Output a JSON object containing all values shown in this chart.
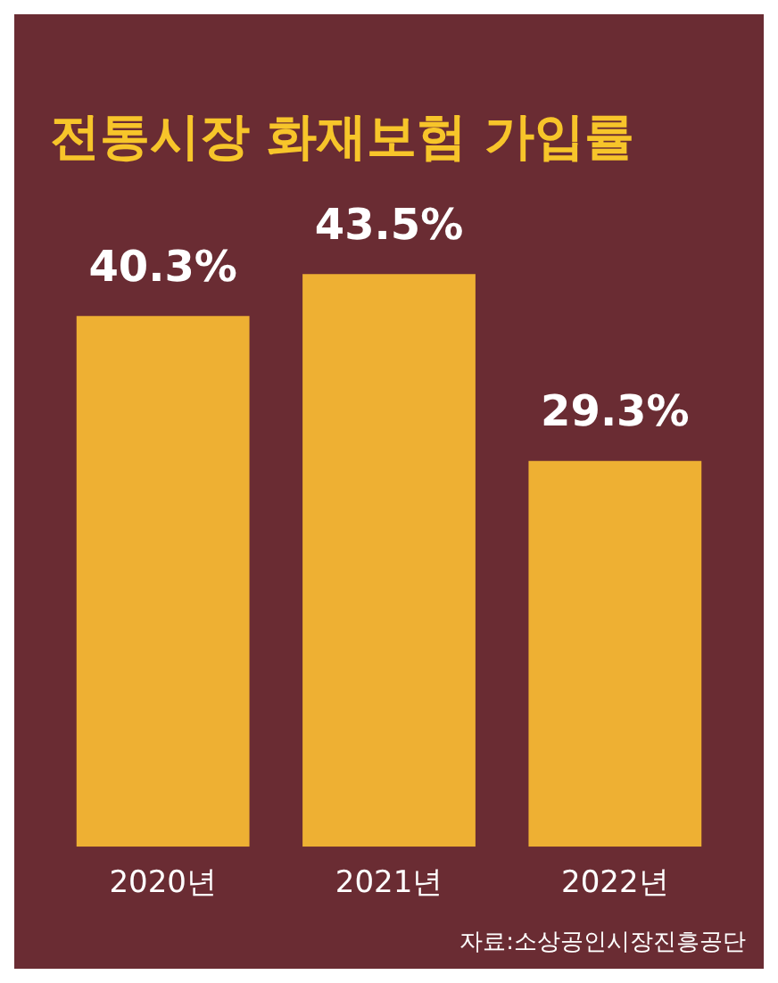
{
  "chart_data": {
    "type": "bar",
    "title": "전통시장 화재보험 가입률",
    "categories": [
      "2020년",
      "2021년",
      "2022년"
    ],
    "values": [
      40.3,
      43.5,
      29.3
    ],
    "value_labels": [
      "40.3%",
      "43.5%",
      "29.3%"
    ],
    "color": "#eeb033",
    "annotations": [
      "자료:소상공인시장진흥공단"
    ]
  }
}
